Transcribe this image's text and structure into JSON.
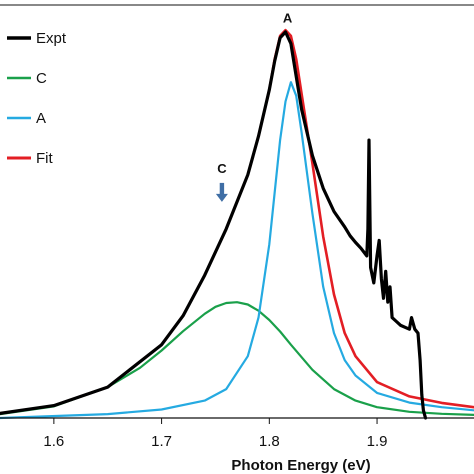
{
  "chart_data": {
    "type": "line",
    "title": "",
    "xlabel": "Photon Energy (eV)",
    "ylabel": "",
    "xlim": [
      1.55,
      1.99
    ],
    "ylim": [
      0,
      1.07
    ],
    "xticks": [
      "1.6",
      "1.7",
      "1.8",
      "1.9"
    ],
    "grid": false,
    "legend": {
      "placement": "top-left"
    },
    "annotations": [
      {
        "text": "A",
        "x": 1.817,
        "y": 1.025,
        "arrow": false
      },
      {
        "text": "C",
        "x": 1.756,
        "y": 0.635,
        "arrow": true,
        "color": "#3f6ea5"
      }
    ],
    "series": [
      {
        "name": "Expt",
        "color": "#000000",
        "width": 3.2,
        "x": [
          1.55,
          1.6,
          1.65,
          1.7,
          1.72,
          1.74,
          1.76,
          1.78,
          1.79,
          1.8,
          1.805,
          1.81,
          1.815,
          1.82,
          1.825,
          1.83,
          1.84,
          1.85,
          1.86,
          1.87,
          1.875,
          1.88,
          1.885,
          1.8905,
          1.8915,
          1.8925,
          1.894,
          1.897,
          1.9,
          1.902,
          1.904,
          1.906,
          1.908,
          1.91,
          1.912,
          1.914,
          1.918,
          1.922,
          1.926,
          1.93,
          1.932,
          1.935,
          1.938,
          1.94,
          1.9415,
          1.943,
          1.945
        ],
        "y": [
          0.012,
          0.032,
          0.08,
          0.19,
          0.265,
          0.37,
          0.49,
          0.63,
          0.73,
          0.85,
          0.925,
          0.985,
          1.0,
          0.97,
          0.885,
          0.8,
          0.68,
          0.595,
          0.535,
          0.495,
          0.472,
          0.455,
          0.44,
          0.42,
          0.49,
          0.72,
          0.39,
          0.35,
          0.42,
          0.46,
          0.36,
          0.31,
          0.38,
          0.3,
          0.34,
          0.26,
          0.25,
          0.24,
          0.235,
          0.23,
          0.26,
          0.23,
          0.22,
          0.15,
          0.06,
          0.02,
          0.0
        ]
      },
      {
        "name": "C",
        "color": "#1aa04a",
        "width": 2.2,
        "x": [
          1.55,
          1.6,
          1.65,
          1.68,
          1.7,
          1.72,
          1.74,
          1.75,
          1.76,
          1.77,
          1.78,
          1.79,
          1.8,
          1.81,
          1.82,
          1.84,
          1.86,
          1.88,
          1.9,
          1.93,
          1.96,
          1.99
        ],
        "y": [
          0.01,
          0.03,
          0.08,
          0.13,
          0.175,
          0.225,
          0.27,
          0.288,
          0.298,
          0.3,
          0.294,
          0.278,
          0.254,
          0.224,
          0.19,
          0.125,
          0.075,
          0.045,
          0.028,
          0.016,
          0.011,
          0.008
        ]
      },
      {
        "name": "A",
        "color": "#25aae1",
        "width": 2.2,
        "x": [
          1.55,
          1.65,
          1.7,
          1.74,
          1.76,
          1.78,
          1.79,
          1.8,
          1.81,
          1.815,
          1.82,
          1.825,
          1.83,
          1.84,
          1.85,
          1.86,
          1.87,
          1.88,
          1.9,
          1.93,
          1.96,
          1.99
        ],
        "y": [
          0.0,
          0.01,
          0.022,
          0.045,
          0.075,
          0.16,
          0.26,
          0.45,
          0.72,
          0.82,
          0.87,
          0.835,
          0.74,
          0.53,
          0.34,
          0.22,
          0.15,
          0.11,
          0.065,
          0.04,
          0.028,
          0.02
        ]
      },
      {
        "name": "Fit",
        "color": "#e31e24",
        "width": 2.6,
        "x": [
          1.55,
          1.6,
          1.65,
          1.7,
          1.72,
          1.74,
          1.76,
          1.78,
          1.79,
          1.8,
          1.805,
          1.81,
          1.815,
          1.82,
          1.825,
          1.83,
          1.84,
          1.85,
          1.86,
          1.87,
          1.88,
          1.9,
          1.93,
          1.96,
          1.99
        ],
        "y": [
          0.012,
          0.032,
          0.08,
          0.19,
          0.265,
          0.37,
          0.49,
          0.63,
          0.73,
          0.85,
          0.93,
          0.99,
          1.005,
          0.99,
          0.93,
          0.84,
          0.66,
          0.47,
          0.32,
          0.22,
          0.16,
          0.093,
          0.056,
          0.039,
          0.028
        ]
      }
    ]
  }
}
